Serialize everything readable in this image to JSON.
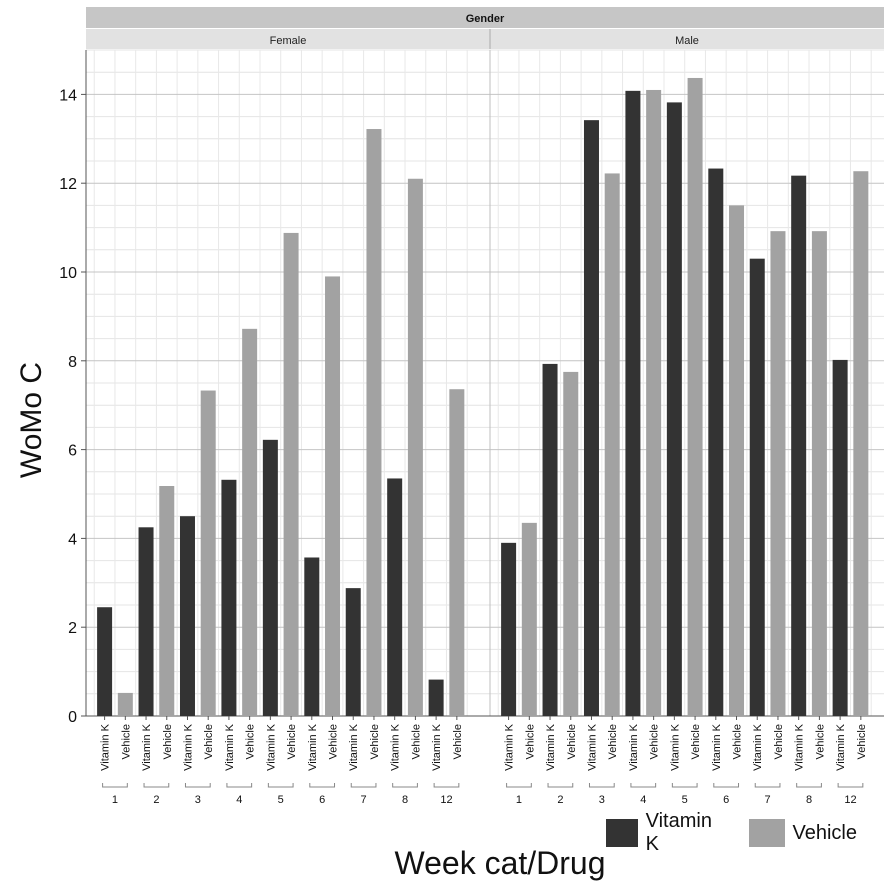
{
  "chart_data": {
    "type": "bar",
    "title": "",
    "facet_header": "Gender",
    "facets": [
      "Female",
      "Male"
    ],
    "xlabel": "Week cat/Drug",
    "ylabel": "WoMo C",
    "ylim": [
      0,
      15
    ],
    "yticks": [
      0,
      2,
      4,
      6,
      8,
      10,
      12,
      14
    ],
    "categories": [
      "1",
      "2",
      "3",
      "4",
      "5",
      "6",
      "7",
      "8",
      "12"
    ],
    "series": [
      {
        "name": "Vitamin K",
        "color": "#333333"
      },
      {
        "name": "Vehicle",
        "color": "#a2a2a2"
      }
    ],
    "values": {
      "Female": {
        "Vitamin K": [
          2.45,
          4.25,
          4.5,
          5.32,
          6.22,
          3.57,
          2.88,
          5.35,
          0.82
        ],
        "Vehicle": [
          0.52,
          5.18,
          7.33,
          8.72,
          10.88,
          9.9,
          13.22,
          12.1,
          7.36
        ]
      },
      "Male": {
        "Vitamin K": [
          3.9,
          7.93,
          13.42,
          14.08,
          13.82,
          12.33,
          10.3,
          12.17,
          8.02
        ],
        "Vehicle": [
          4.35,
          7.75,
          12.22,
          14.1,
          14.37,
          11.5,
          10.92,
          10.92,
          12.27
        ]
      }
    },
    "grid": true,
    "legend_position": "bottom-right"
  }
}
